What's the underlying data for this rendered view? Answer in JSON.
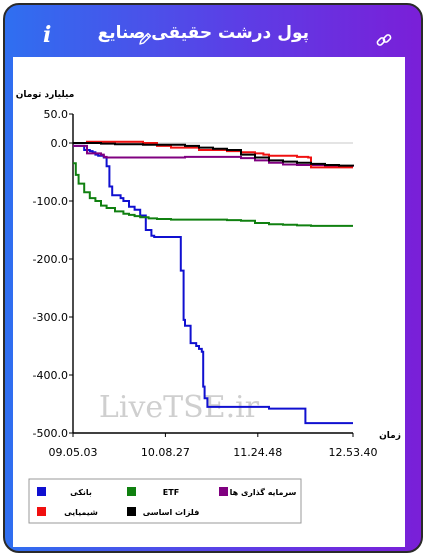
{
  "header": {
    "title": "پول درشت حقیقی صنایع",
    "info_icon": "info-icon",
    "edit_icon": "pencil-icon",
    "link_icon": "link-icon"
  },
  "colors": {
    "accent_left": "#2f6ff0",
    "accent_right": "#7a1fd8"
  },
  "watermark": "LiveTSE.ir",
  "chart_data": {
    "type": "line",
    "ylabel": "میلیارد تومان",
    "xlabel": "زمان",
    "ylim": [
      -500,
      50
    ],
    "xlim": [
      0,
      100
    ],
    "y_ticks": [
      "50.0",
      "0.0",
      "-100.0",
      "-200.0",
      "-300.0",
      "-400.0",
      "-500.0"
    ],
    "y_tick_values": [
      50,
      0,
      -100,
      -200,
      -300,
      -400,
      -500
    ],
    "x_ticks": [
      "09.05.03",
      "10.08.27",
      "11.24.48",
      "12.53.40"
    ],
    "x_tick_values": [
      0,
      33,
      66,
      100
    ],
    "grid": false,
    "legend_position": "bottom",
    "series": [
      {
        "name": "بانکی",
        "color": "#1010d0",
        "x": [
          0,
          3,
          4,
          6,
          7,
          8,
          9,
          11,
          12,
          13,
          14,
          17,
          18,
          20,
          22,
          24,
          26,
          28,
          29,
          31,
          33,
          35,
          37,
          38,
          38.5,
          39.5,
          40,
          42,
          43,
          44,
          45,
          46,
          46.5,
          47,
          48,
          53,
          60,
          70,
          80,
          82,
          83,
          100
        ],
        "y": [
          -5,
          -5,
          -12,
          -14,
          -16,
          -20,
          -22,
          -25,
          -40,
          -75,
          -90,
          -95,
          -100,
          -110,
          -115,
          -125,
          -150,
          -160,
          -162,
          -162,
          -162,
          -162,
          -162,
          -162,
          -220,
          -305,
          -315,
          -345,
          -345,
          -350,
          -355,
          -360,
          -420,
          -440,
          -455,
          -455,
          -455,
          -458,
          -458,
          -458,
          -483,
          -483
        ]
      },
      {
        "name": "ETF",
        "color": "#108010",
        "x": [
          0,
          1,
          2,
          4,
          6,
          8,
          10,
          12,
          15,
          18,
          20,
          22,
          24,
          27,
          30,
          35,
          40,
          45,
          50,
          55,
          60,
          65,
          70,
          75,
          80,
          85,
          90,
          95,
          100
        ],
        "y": [
          -35,
          -55,
          -70,
          -85,
          -95,
          -100,
          -108,
          -112,
          -118,
          -122,
          -124,
          -126,
          -128,
          -130,
          -131,
          -132,
          -132,
          -132,
          -132,
          -133,
          -134,
          -138,
          -140,
          -141,
          -142,
          -143,
          -143,
          -143,
          -143
        ]
      },
      {
        "name": "سرمایه گذاری ها",
        "color": "#800080",
        "x": [
          0,
          5,
          10,
          11,
          12,
          20,
          30,
          40,
          45,
          50,
          55,
          60,
          65,
          70,
          75,
          80,
          90,
          100
        ],
        "y": [
          -5,
          -18,
          -20,
          -24,
          -25,
          -25,
          -25,
          -24,
          -24,
          -24,
          -24,
          -26,
          -30,
          -34,
          -37,
          -38,
          -40,
          -41
        ]
      },
      {
        "name": "شیمیایی",
        "color": "#f01010",
        "x": [
          0,
          5,
          10,
          15,
          20,
          25,
          30,
          35,
          40,
          45,
          50,
          55,
          60,
          65,
          68,
          70,
          75,
          80,
          84,
          85,
          90,
          95,
          100
        ],
        "y": [
          0,
          2,
          2,
          2,
          2,
          0,
          -5,
          -8,
          -8,
          -12,
          -12,
          -14,
          -16,
          -18,
          -20,
          -22,
          -22,
          -24,
          -25,
          -42,
          -42,
          -42,
          -42
        ]
      },
      {
        "name": "فلزات اساسی",
        "color": "#000000",
        "x": [
          0,
          5,
          10,
          15,
          20,
          25,
          30,
          35,
          40,
          45,
          50,
          55,
          60,
          65,
          70,
          75,
          80,
          85,
          90,
          95,
          100
        ],
        "y": [
          0,
          0,
          -1,
          -2,
          -2,
          -3,
          -3,
          -3,
          -5,
          -8,
          -10,
          -12,
          -20,
          -25,
          -30,
          -32,
          -34,
          -36,
          -38,
          -39,
          -40
        ]
      }
    ],
    "legend_rows": [
      [
        "بانکی",
        "ETF",
        "سرمایه گذاری ها"
      ],
      [
        "شیمیایی",
        "فلزات اساسی"
      ]
    ]
  }
}
